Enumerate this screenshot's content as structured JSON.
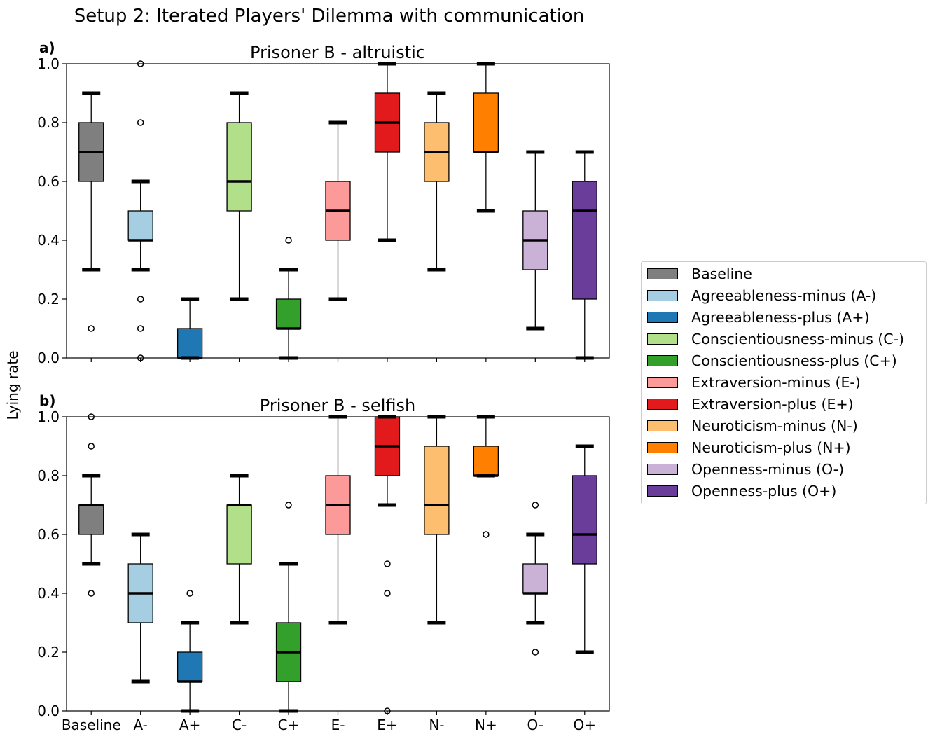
{
  "figure": {
    "suptitle": "Setup 2: Iterated Players' Dilemma with communication",
    "ylabel": "Lying rate"
  },
  "legend": {
    "entries": [
      {
        "label": "Baseline",
        "color": "#7f7f7f"
      },
      {
        "label": "Agreeableness-minus (A-)",
        "color": "#a6cee3"
      },
      {
        "label": "Agreeableness-plus (A+)",
        "color": "#1f78b4"
      },
      {
        "label": "Conscientiousness-minus (C-)",
        "color": "#b2df8a"
      },
      {
        "label": "Conscientiousness-plus (C+)",
        "color": "#33a02c"
      },
      {
        "label": "Extraversion-minus (E-)",
        "color": "#fb9a99"
      },
      {
        "label": "Extraversion-plus (E+)",
        "color": "#e31a1c"
      },
      {
        "label": "Neuroticism-minus (N-)",
        "color": "#fdbf6f"
      },
      {
        "label": "Neuroticism-plus (N+)",
        "color": "#ff7f00"
      },
      {
        "label": "Openness-minus (O-)",
        "color": "#cab2d6"
      },
      {
        "label": "Openness-plus (O+)",
        "color": "#6a3d9a"
      }
    ]
  },
  "chart_data": [
    {
      "type": "box",
      "panel_label": "a)",
      "title": "Prisoner B - altruistic",
      "ylim": [
        0,
        1
      ],
      "yticks": [
        "0.0",
        "0.2",
        "0.4",
        "0.6",
        "0.8",
        "1.0"
      ],
      "categories": [
        "Baseline",
        "A-",
        "A+",
        "C-",
        "C+",
        "E-",
        "E+",
        "N-",
        "N+",
        "O-",
        "O+"
      ],
      "boxes": [
        {
          "q1": 0.6,
          "median": 0.7,
          "q3": 0.8,
          "whisker_low": 0.3,
          "whisker_high": 0.9,
          "outliers": [
            0.1
          ]
        },
        {
          "q1": 0.4,
          "median": 0.4,
          "q3": 0.5,
          "whisker_low": 0.3,
          "whisker_high": 0.6,
          "outliers": [
            1.0,
            0.8,
            0.2,
            0.1,
            0.0
          ]
        },
        {
          "q1": 0.0,
          "median": 0.0,
          "q3": 0.1,
          "whisker_low": 0.0,
          "whisker_high": 0.2,
          "outliers": []
        },
        {
          "q1": 0.5,
          "median": 0.6,
          "q3": 0.8,
          "whisker_low": 0.2,
          "whisker_high": 0.9,
          "outliers": []
        },
        {
          "q1": 0.1,
          "median": 0.1,
          "q3": 0.2,
          "whisker_low": 0.0,
          "whisker_high": 0.3,
          "outliers": [
            0.4
          ]
        },
        {
          "q1": 0.4,
          "median": 0.5,
          "q3": 0.6,
          "whisker_low": 0.2,
          "whisker_high": 0.8,
          "outliers": []
        },
        {
          "q1": 0.7,
          "median": 0.8,
          "q3": 0.9,
          "whisker_low": 0.4,
          "whisker_high": 1.0,
          "outliers": []
        },
        {
          "q1": 0.6,
          "median": 0.7,
          "q3": 0.8,
          "whisker_low": 0.3,
          "whisker_high": 0.9,
          "outliers": []
        },
        {
          "q1": 0.7,
          "median": 0.7,
          "q3": 0.9,
          "whisker_low": 0.5,
          "whisker_high": 1.0,
          "outliers": []
        },
        {
          "q1": 0.3,
          "median": 0.4,
          "q3": 0.5,
          "whisker_low": 0.1,
          "whisker_high": 0.7,
          "outliers": []
        },
        {
          "q1": 0.2,
          "median": 0.5,
          "q3": 0.6,
          "whisker_low": 0.0,
          "whisker_high": 0.7,
          "outliers": []
        }
      ]
    },
    {
      "type": "box",
      "panel_label": "b)",
      "title": "Prisoner B - selfish",
      "ylim": [
        0,
        1
      ],
      "yticks": [
        "0.0",
        "0.2",
        "0.4",
        "0.6",
        "0.8",
        "1.0"
      ],
      "categories": [
        "Baseline",
        "A-",
        "A+",
        "C-",
        "C+",
        "E-",
        "E+",
        "N-",
        "N+",
        "O-",
        "O+"
      ],
      "boxes": [
        {
          "q1": 0.6,
          "median": 0.7,
          "q3": 0.7,
          "whisker_low": 0.5,
          "whisker_high": 0.8,
          "outliers": [
            1.0,
            0.9,
            0.4
          ]
        },
        {
          "q1": 0.3,
          "median": 0.4,
          "q3": 0.5,
          "whisker_low": 0.1,
          "whisker_high": 0.6,
          "outliers": []
        },
        {
          "q1": 0.1,
          "median": 0.1,
          "q3": 0.2,
          "whisker_low": 0.0,
          "whisker_high": 0.3,
          "outliers": [
            0.4
          ]
        },
        {
          "q1": 0.5,
          "median": 0.7,
          "q3": 0.7,
          "whisker_low": 0.3,
          "whisker_high": 0.8,
          "outliers": []
        },
        {
          "q1": 0.1,
          "median": 0.2,
          "q3": 0.3,
          "whisker_low": 0.0,
          "whisker_high": 0.5,
          "outliers": [
            0.7
          ]
        },
        {
          "q1": 0.6,
          "median": 0.7,
          "q3": 0.8,
          "whisker_low": 0.3,
          "whisker_high": 1.0,
          "outliers": []
        },
        {
          "q1": 0.8,
          "median": 0.9,
          "q3": 1.0,
          "whisker_low": 0.7,
          "whisker_high": 1.0,
          "outliers": [
            0.5,
            0.4,
            0.0
          ]
        },
        {
          "q1": 0.6,
          "median": 0.7,
          "q3": 0.9,
          "whisker_low": 0.3,
          "whisker_high": 1.0,
          "outliers": []
        },
        {
          "q1": 0.8,
          "median": 0.8,
          "q3": 0.9,
          "whisker_low": 0.8,
          "whisker_high": 1.0,
          "outliers": [
            0.6
          ]
        },
        {
          "q1": 0.4,
          "median": 0.4,
          "q3": 0.5,
          "whisker_low": 0.3,
          "whisker_high": 0.6,
          "outliers": [
            0.7,
            0.2
          ]
        },
        {
          "q1": 0.5,
          "median": 0.6,
          "q3": 0.8,
          "whisker_low": 0.2,
          "whisker_high": 0.9,
          "outliers": []
        }
      ]
    }
  ]
}
